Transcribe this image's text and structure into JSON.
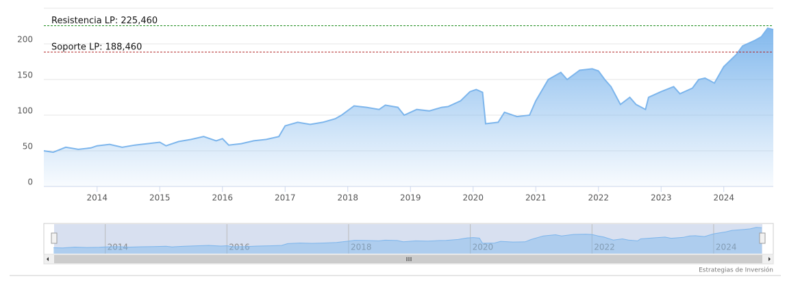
{
  "chart_data": {
    "type": "area",
    "series": [
      {
        "name": null,
        "color": "#7cb5ec",
        "x": [
          2013.15,
          2013.3,
          2013.5,
          2013.7,
          2013.9,
          2014.0,
          2014.2,
          2014.4,
          2014.6,
          2014.8,
          2015.0,
          2015.1,
          2015.3,
          2015.5,
          2015.7,
          2015.9,
          2016.0,
          2016.1,
          2016.3,
          2016.5,
          2016.7,
          2016.9,
          2017.0,
          2017.2,
          2017.4,
          2017.6,
          2017.8,
          2017.9,
          2018.1,
          2018.3,
          2018.5,
          2018.6,
          2018.8,
          2018.9,
          2019.1,
          2019.3,
          2019.5,
          2019.6,
          2019.8,
          2019.95,
          2020.05,
          2020.15,
          2020.2,
          2020.4,
          2020.5,
          2020.7,
          2020.9,
          2021.0,
          2021.2,
          2021.4,
          2021.5,
          2021.7,
          2021.9,
          2022.0,
          2022.1,
          2022.2,
          2022.35,
          2022.5,
          2022.6,
          2022.75,
          2022.8,
          2023.0,
          2023.2,
          2023.3,
          2023.5,
          2023.6,
          2023.7,
          2023.85,
          2024.0,
          2024.2,
          2024.3,
          2024.5,
          2024.6,
          2024.7,
          2024.79
        ],
        "values": [
          50,
          48,
          55,
          52,
          54,
          57,
          59,
          55,
          58,
          60,
          62,
          57,
          63,
          66,
          70,
          64,
          67,
          58,
          60,
          64,
          66,
          70,
          85,
          90,
          87,
          90,
          95,
          100,
          113,
          111,
          108,
          114,
          111,
          100,
          108,
          106,
          111,
          112,
          120,
          133,
          136,
          132,
          88,
          90,
          104,
          98,
          100,
          120,
          150,
          160,
          150,
          163,
          165,
          162,
          150,
          140,
          115,
          125,
          115,
          108,
          125,
          133,
          140,
          130,
          138,
          150,
          152,
          145,
          168,
          185,
          197,
          205,
          210,
          222,
          220
        ]
      }
    ],
    "xlim": [
      2013.15,
      2024.79
    ],
    "xticks": [
      2014,
      2015,
      2016,
      2017,
      2018,
      2019,
      2020,
      2021,
      2022,
      2023,
      2024
    ],
    "ylim": [
      0,
      250
    ],
    "yticks": [
      0,
      50,
      100,
      150,
      200
    ],
    "grid": true,
    "levels": [
      {
        "label": "Resistencia LP: 225,460",
        "value": 225.46,
        "color": "#1a8a1a"
      },
      {
        "label": "Soporte LP: 188,460",
        "value": 188.46,
        "color": "#b22222"
      }
    ],
    "navigator": {
      "xlim": [
        2013.16,
        2024.8
      ],
      "xticks": [
        2014,
        2016,
        2018,
        2020,
        2022,
        2024
      ]
    },
    "credit": "Estrategias de Inversión"
  }
}
